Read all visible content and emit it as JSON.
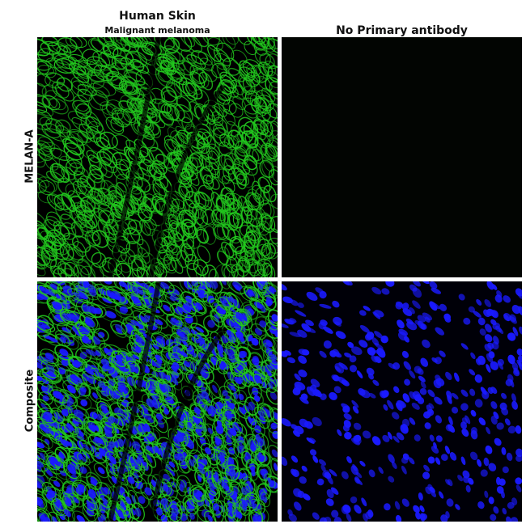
{
  "columns": [
    {
      "title": "Human Skin",
      "subtitle": "Malignant melanoma"
    },
    {
      "title": "No Primary antibody"
    }
  ],
  "rows": [
    {
      "label": "MELAN-A"
    },
    {
      "label": "Composite"
    }
  ],
  "colors": {
    "stain": "#22c81e",
    "nuclear": "#1a1aff",
    "background": "#000000"
  }
}
